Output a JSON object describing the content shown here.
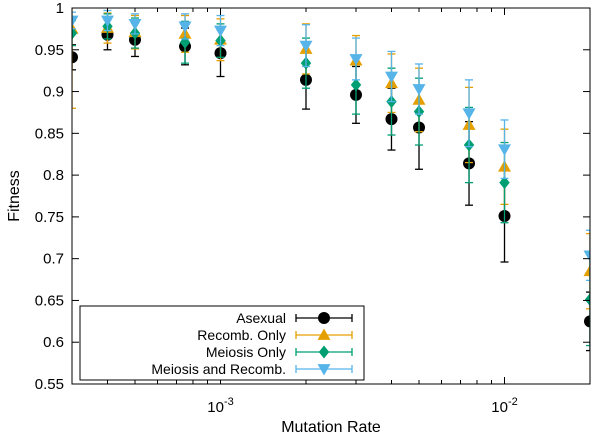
{
  "chart_data": {
    "type": "scatter",
    "xlabel": "Mutation Rate",
    "ylabel": "Fitness",
    "xscale": "log",
    "xlim": [
      0.0003,
      0.02
    ],
    "ylim": [
      0.55,
      1.0
    ],
    "yticks": [
      0.55,
      0.6,
      0.65,
      0.7,
      0.75,
      0.8,
      0.85,
      0.9,
      0.95,
      1.0
    ],
    "ytick_labels": [
      "0.55",
      "0.6",
      "0.65",
      "0.7",
      "0.75",
      "0.8",
      "0.85",
      "0.9",
      "0.95",
      "1"
    ],
    "xticks_major": [
      0.001,
      0.01
    ],
    "xtick_labels": [
      {
        "base": "10",
        "exp": "-3"
      },
      {
        "base": "10",
        "exp": "-2"
      }
    ],
    "grid": false,
    "legend_position": "bottom-left",
    "series": [
      {
        "name": "Asexual",
        "marker": "circle",
        "color": "#000000",
        "points": [
          {
            "x": 0.0003,
            "y": 0.941,
            "err": 0.015
          },
          {
            "x": 0.0004,
            "y": 0.968,
            "err": 0.018
          },
          {
            "x": 0.0005,
            "y": 0.962,
            "err": 0.02
          },
          {
            "x": 0.00075,
            "y": 0.954,
            "err": 0.022
          },
          {
            "x": 0.001,
            "y": 0.946,
            "err": 0.028
          },
          {
            "x": 0.002,
            "y": 0.914,
            "err": 0.035
          },
          {
            "x": 0.003,
            "y": 0.896,
            "err": 0.034
          },
          {
            "x": 0.004,
            "y": 0.867,
            "err": 0.037
          },
          {
            "x": 0.005,
            "y": 0.857,
            "err": 0.05
          },
          {
            "x": 0.0075,
            "y": 0.814,
            "err": 0.05
          },
          {
            "x": 0.01,
            "y": 0.751,
            "err": 0.055
          },
          {
            "x": 0.02,
            "y": 0.625,
            "err": 0.035
          }
        ]
      },
      {
        "name": "Recomb. Only",
        "marker": "triangle-up",
        "color": "#e69f00",
        "points": [
          {
            "x": 0.0003,
            "y": 0.975,
            "err": 0.095
          },
          {
            "x": 0.0004,
            "y": 0.976,
            "err": 0.018
          },
          {
            "x": 0.0005,
            "y": 0.971,
            "err": 0.02
          },
          {
            "x": 0.00075,
            "y": 0.969,
            "err": 0.022
          },
          {
            "x": 0.001,
            "y": 0.962,
            "err": 0.025
          },
          {
            "x": 0.002,
            "y": 0.951,
            "err": 0.03
          },
          {
            "x": 0.003,
            "y": 0.937,
            "err": 0.03
          },
          {
            "x": 0.004,
            "y": 0.91,
            "err": 0.035
          },
          {
            "x": 0.005,
            "y": 0.89,
            "err": 0.038
          },
          {
            "x": 0.0075,
            "y": 0.86,
            "err": 0.045
          },
          {
            "x": 0.01,
            "y": 0.81,
            "err": 0.045
          },
          {
            "x": 0.02,
            "y": 0.685,
            "err": 0.045
          }
        ]
      },
      {
        "name": "Meiosis Only",
        "marker": "diamond",
        "color": "#009e73",
        "points": [
          {
            "x": 0.0003,
            "y": 0.97,
            "err": 0.015
          },
          {
            "x": 0.0004,
            "y": 0.978,
            "err": 0.015
          },
          {
            "x": 0.0005,
            "y": 0.97,
            "err": 0.018
          },
          {
            "x": 0.00075,
            "y": 0.959,
            "err": 0.025
          },
          {
            "x": 0.001,
            "y": 0.961,
            "err": 0.02
          },
          {
            "x": 0.002,
            "y": 0.934,
            "err": 0.03
          },
          {
            "x": 0.003,
            "y": 0.908,
            "err": 0.035
          },
          {
            "x": 0.004,
            "y": 0.888,
            "err": 0.04
          },
          {
            "x": 0.005,
            "y": 0.876,
            "err": 0.04
          },
          {
            "x": 0.0075,
            "y": 0.836,
            "err": 0.045
          },
          {
            "x": 0.01,
            "y": 0.791,
            "err": 0.048
          },
          {
            "x": 0.02,
            "y": 0.651,
            "err": 0.055
          }
        ]
      },
      {
        "name": "Meiosis and Recomb.",
        "marker": "triangle-down",
        "color": "#56b4e9",
        "points": [
          {
            "x": 0.0003,
            "y": 0.985,
            "err": 0.01
          },
          {
            "x": 0.0004,
            "y": 0.985,
            "err": 0.012
          },
          {
            "x": 0.0005,
            "y": 0.981,
            "err": 0.012
          },
          {
            "x": 0.00075,
            "y": 0.978,
            "err": 0.015
          },
          {
            "x": 0.001,
            "y": 0.973,
            "err": 0.018
          },
          {
            "x": 0.002,
            "y": 0.955,
            "err": 0.025
          },
          {
            "x": 0.003,
            "y": 0.939,
            "err": 0.025
          },
          {
            "x": 0.004,
            "y": 0.918,
            "err": 0.03
          },
          {
            "x": 0.005,
            "y": 0.903,
            "err": 0.03
          },
          {
            "x": 0.0075,
            "y": 0.874,
            "err": 0.04
          },
          {
            "x": 0.01,
            "y": 0.831,
            "err": 0.035
          },
          {
            "x": 0.02,
            "y": 0.704,
            "err": 0.03
          }
        ]
      }
    ]
  }
}
